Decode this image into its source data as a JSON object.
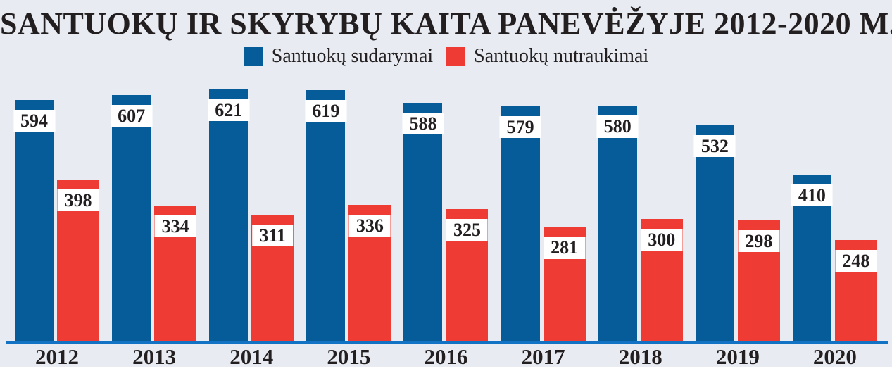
{
  "title": "SANTUOKŲ IR SKYRYBŲ KAITA PANEVĖŽYJE 2012-2020 M.",
  "legend": {
    "items": [
      {
        "label": "Santuokų sudarymai",
        "color": "#055c99"
      },
      {
        "label": "Santuokų nutraukimai",
        "color": "#ee3b33"
      }
    ]
  },
  "colors": {
    "background": "#e8ecf2",
    "marriages_bar": "#055c99",
    "divorces_bar": "#ee3b33",
    "axis_line": "#1273c4",
    "text": "#231f20",
    "value_box_background": "#ffffff",
    "bottom_strip": "#ffffff"
  },
  "chart_data": {
    "type": "bar",
    "categories": [
      "2012",
      "2013",
      "2014",
      "2015",
      "2016",
      "2017",
      "2018",
      "2019",
      "2020"
    ],
    "series": [
      {
        "name": "Santuokų sudarymai",
        "color": "#055c99",
        "values": [
          594,
          607,
          621,
          619,
          588,
          579,
          580,
          532,
          410
        ]
      },
      {
        "name": "Santuokų nutraukimai",
        "color": "#ee3b33",
        "values": [
          398,
          334,
          311,
          336,
          325,
          281,
          300,
          298,
          248
        ]
      }
    ],
    "title": "SANTUOKŲ IR SKYRYBŲ KAITA PANEVĖŽYJE 2012-2020 M.",
    "xlabel": "",
    "ylabel": "",
    "ylim": [
      0,
      650
    ],
    "grid": false,
    "legend_position": "top-center",
    "value_labels": "white box near top of each bar",
    "x_axis_line": true
  }
}
